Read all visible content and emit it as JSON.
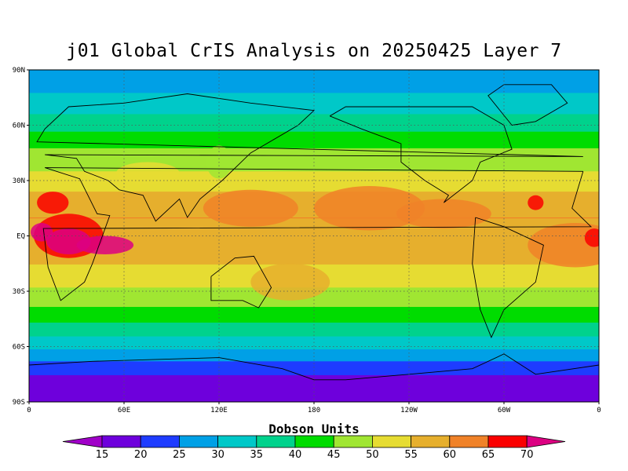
{
  "title": "j01 Global CrIS Analysis on 20250425 Layer 7",
  "lat_axis": [
    "90N",
    "60N",
    "30N",
    "EQ",
    "30S",
    "60S",
    "90S"
  ],
  "lon_axis": [
    "0",
    "60E",
    "120E",
    "180",
    "120W",
    "60W",
    "0"
  ],
  "colorbar": {
    "title": "Dobson Units",
    "ticks": [
      "15",
      "20",
      "25",
      "30",
      "35",
      "40",
      "45",
      "50",
      "55",
      "60",
      "65",
      "70"
    ],
    "colors": [
      "#a000c8",
      "#6e00dc",
      "#1e3cff",
      "#00a0e6",
      "#00c8c8",
      "#00d28c",
      "#00dc00",
      "#a0e632",
      "#e6dc32",
      "#e6af2d",
      "#f08228",
      "#fa0000",
      "#dc0082"
    ]
  },
  "chart_data": {
    "type": "heatmap",
    "title": "j01 Global CrIS Analysis on 20250425 Layer 7",
    "variable": "Dobson Units",
    "lat_range": [
      -90,
      90
    ],
    "lon_range": [
      0,
      360
    ],
    "levels": [
      15,
      20,
      25,
      30,
      35,
      40,
      45,
      50,
      55,
      60,
      65,
      70
    ],
    "zonal_profile": {
      "lat": [
        90,
        80,
        70,
        60,
        50,
        40,
        30,
        20,
        10,
        0,
        -10,
        -20,
        -30,
        -40,
        -50,
        -60,
        -70,
        -80,
        -90
      ],
      "value": [
        27,
        29,
        33,
        38,
        44,
        48,
        52,
        57,
        60,
        58,
        57,
        53,
        49,
        44,
        38,
        31,
        23,
        17,
        16
      ]
    }
  }
}
